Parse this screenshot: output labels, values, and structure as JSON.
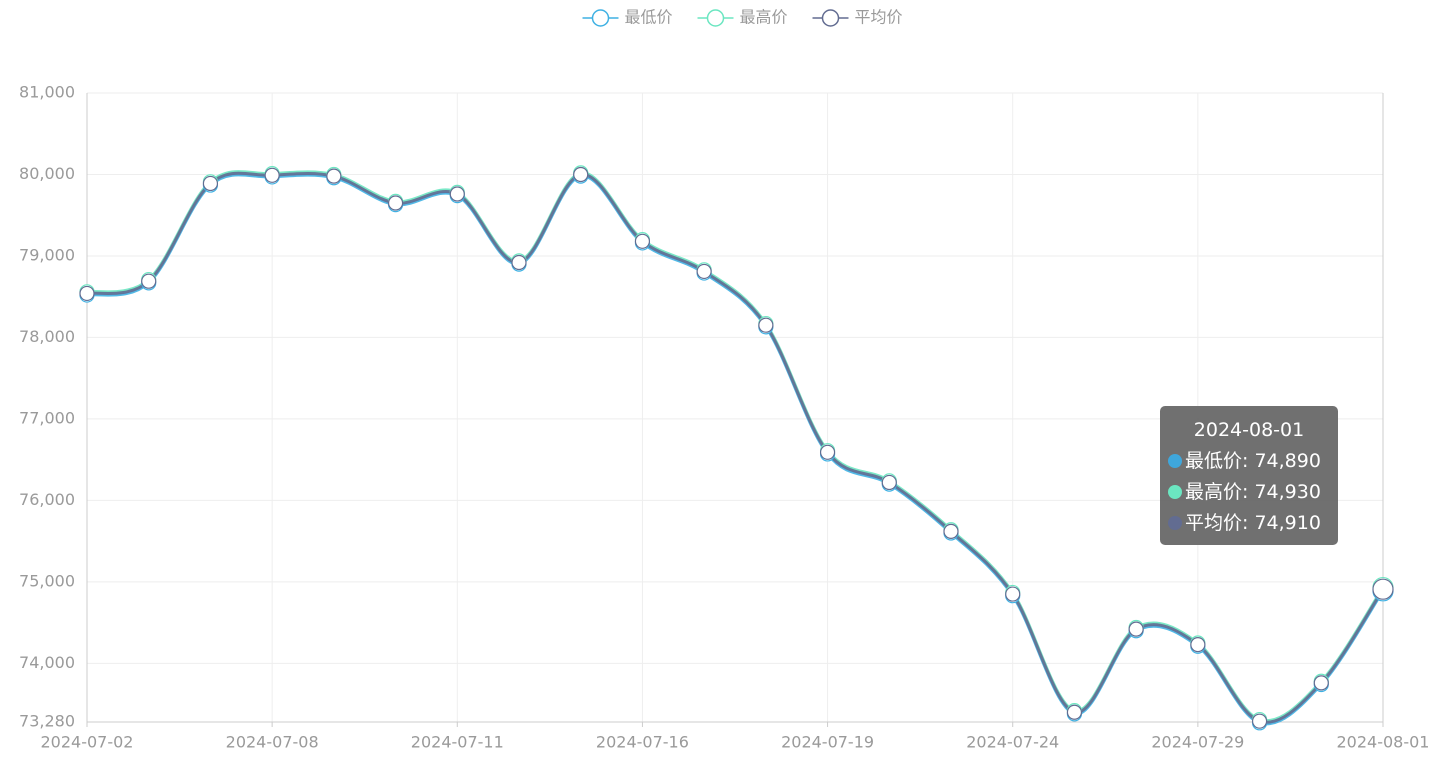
{
  "chart_data": {
    "type": "line",
    "categories": [
      "2024-07-02",
      null,
      null,
      "2024-07-08",
      null,
      null,
      "2024-07-11",
      null,
      null,
      "2024-07-16",
      null,
      null,
      "2024-07-19",
      null,
      null,
      "2024-07-24",
      null,
      null,
      "2024-07-29",
      null,
      null,
      "2024-08-01"
    ],
    "series": [
      {
        "name": "最低价",
        "color": "#3fb1e3",
        "values": [
          78520,
          78670,
          79870,
          79970,
          79960,
          79630,
          79740,
          78900,
          79980,
          79160,
          78790,
          78130,
          76570,
          76200,
          75600,
          74830,
          73380,
          74400,
          74210,
          73270,
          73740,
          74890
        ]
      },
      {
        "name": "最高价",
        "color": "#6be6c1",
        "values": [
          78560,
          78710,
          79910,
          80010,
          80000,
          79670,
          79780,
          78940,
          80020,
          79200,
          78830,
          78170,
          76610,
          76240,
          75640,
          74870,
          73420,
          74440,
          74250,
          73310,
          73780,
          74930
        ]
      },
      {
        "name": "平均价",
        "color": "#626c91",
        "values": [
          78540,
          78690,
          79890,
          79990,
          79980,
          79650,
          79760,
          78920,
          80000,
          79180,
          78810,
          78150,
          76590,
          76220,
          75620,
          74850,
          73400,
          74420,
          74230,
          73290,
          73760,
          74910
        ]
      }
    ],
    "ylim": [
      73280,
      81000
    ],
    "yticks": [
      {
        "value": 73280,
        "label": "73,280"
      },
      {
        "value": 74000,
        "label": "74,000"
      },
      {
        "value": 75000,
        "label": "75,000"
      },
      {
        "value": 76000,
        "label": "76,000"
      },
      {
        "value": 77000,
        "label": "77,000"
      },
      {
        "value": 78000,
        "label": "78,000"
      },
      {
        "value": 79000,
        "label": "79,000"
      },
      {
        "value": 80000,
        "label": "80,000"
      },
      {
        "value": 81000,
        "label": "81,000"
      }
    ],
    "grid": true,
    "smooth": true,
    "legend": "top",
    "tooltip": {
      "title": "2024-08-01",
      "values": [
        "74,890",
        "74,930",
        "74,910"
      ]
    }
  }
}
